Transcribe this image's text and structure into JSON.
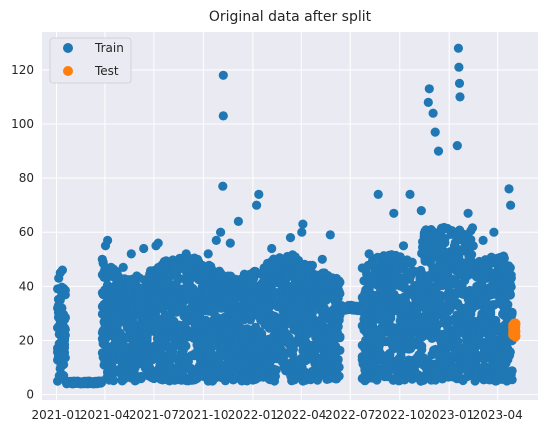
{
  "chart_data": {
    "type": "scatter",
    "title": "Original data after split",
    "xlabel": "",
    "ylabel": "",
    "x_range": [
      "2020-12-05",
      "2023-06-15"
    ],
    "ylim": [
      -2,
      134
    ],
    "grid": true,
    "legend_placement": "top-left",
    "x_ticks": [
      "2021-01",
      "2021-04",
      "2021-07",
      "2021-10",
      "2022-01",
      "2022-04",
      "2022-07",
      "2022-10",
      "2023-01",
      "2023-04"
    ],
    "x_tick_dates": [
      "2021-01-01",
      "2021-04-01",
      "2021-07-01",
      "2021-10-01",
      "2022-01-01",
      "2022-04-01",
      "2022-07-01",
      "2022-10-01",
      "2023-01-01",
      "2023-04-01"
    ],
    "y_ticks": [
      0,
      20,
      40,
      60,
      80,
      100,
      120
    ],
    "series": [
      {
        "name": "Train",
        "color": "#1f77b4",
        "x_range": [
          "2021-01-03",
          "2023-04-28"
        ],
        "points": [
          {
            "x": "2021-01-05",
            "y": 43
          },
          {
            "x": "2021-01-08",
            "y": 45
          },
          {
            "x": "2021-01-12",
            "y": 46
          },
          {
            "x": "2021-01-20",
            "y": 4
          },
          {
            "x": "2021-02-01",
            "y": 4
          },
          {
            "x": "2021-02-20",
            "y": 4
          },
          {
            "x": "2021-03-10",
            "y": 4
          },
          {
            "x": "2021-03-25",
            "y": 5
          },
          {
            "x": "2021-03-27",
            "y": 50
          },
          {
            "x": "2021-04-02",
            "y": 55
          },
          {
            "x": "2021-04-06",
            "y": 57
          },
          {
            "x": "2021-05-05",
            "y": 47
          },
          {
            "x": "2021-05-20",
            "y": 52
          },
          {
            "x": "2021-06-12",
            "y": 54
          },
          {
            "x": "2021-07-05",
            "y": 55
          },
          {
            "x": "2021-07-09",
            "y": 56
          },
          {
            "x": "2021-08-10",
            "y": 46
          },
          {
            "x": "2021-08-30",
            "y": 52
          },
          {
            "x": "2021-09-20",
            "y": 50
          },
          {
            "x": "2021-10-10",
            "y": 52
          },
          {
            "x": "2021-10-25",
            "y": 57
          },
          {
            "x": "2021-11-02",
            "y": 60
          },
          {
            "x": "2021-11-07",
            "y": 118
          },
          {
            "x": "2021-11-07",
            "y": 103
          },
          {
            "x": "2021-11-06",
            "y": 77
          },
          {
            "x": "2021-11-20",
            "y": 56
          },
          {
            "x": "2021-12-05",
            "y": 64
          },
          {
            "x": "2022-01-08",
            "y": 70
          },
          {
            "x": "2022-01-12",
            "y": 74
          },
          {
            "x": "2022-02-05",
            "y": 54
          },
          {
            "x": "2022-03-12",
            "y": 58
          },
          {
            "x": "2022-04-02",
            "y": 60
          },
          {
            "x": "2022-04-04",
            "y": 63
          },
          {
            "x": "2022-05-10",
            "y": 50
          },
          {
            "x": "2022-05-25",
            "y": 59
          },
          {
            "x": "2022-06-20",
            "y": 32
          },
          {
            "x": "2022-07-20",
            "y": 31
          },
          {
            "x": "2022-08-05",
            "y": 52
          },
          {
            "x": "2022-08-22",
            "y": 74
          },
          {
            "x": "2022-09-20",
            "y": 67
          },
          {
            "x": "2022-10-08",
            "y": 55
          },
          {
            "x": "2022-10-20",
            "y": 74
          },
          {
            "x": "2022-11-10",
            "y": 68
          },
          {
            "x": "2022-11-23",
            "y": 108
          },
          {
            "x": "2022-11-25",
            "y": 113
          },
          {
            "x": "2022-12-02",
            "y": 104
          },
          {
            "x": "2022-12-06",
            "y": 97
          },
          {
            "x": "2022-12-12",
            "y": 90
          },
          {
            "x": "2023-01-18",
            "y": 128
          },
          {
            "x": "2023-01-19",
            "y": 121
          },
          {
            "x": "2023-01-20",
            "y": 115
          },
          {
            "x": "2023-01-21",
            "y": 110
          },
          {
            "x": "2023-01-16",
            "y": 92
          },
          {
            "x": "2023-02-05",
            "y": 67
          },
          {
            "x": "2023-03-05",
            "y": 57
          },
          {
            "x": "2023-03-25",
            "y": 60
          },
          {
            "x": "2023-04-22",
            "y": 76
          },
          {
            "x": "2023-04-25",
            "y": 70
          }
        ]
      },
      {
        "name": "Test",
        "color": "#ff7f0e",
        "x_range": [
          "2023-04-29",
          "2023-05-05"
        ],
        "y_range": [
          21,
          26.5
        ]
      }
    ]
  }
}
